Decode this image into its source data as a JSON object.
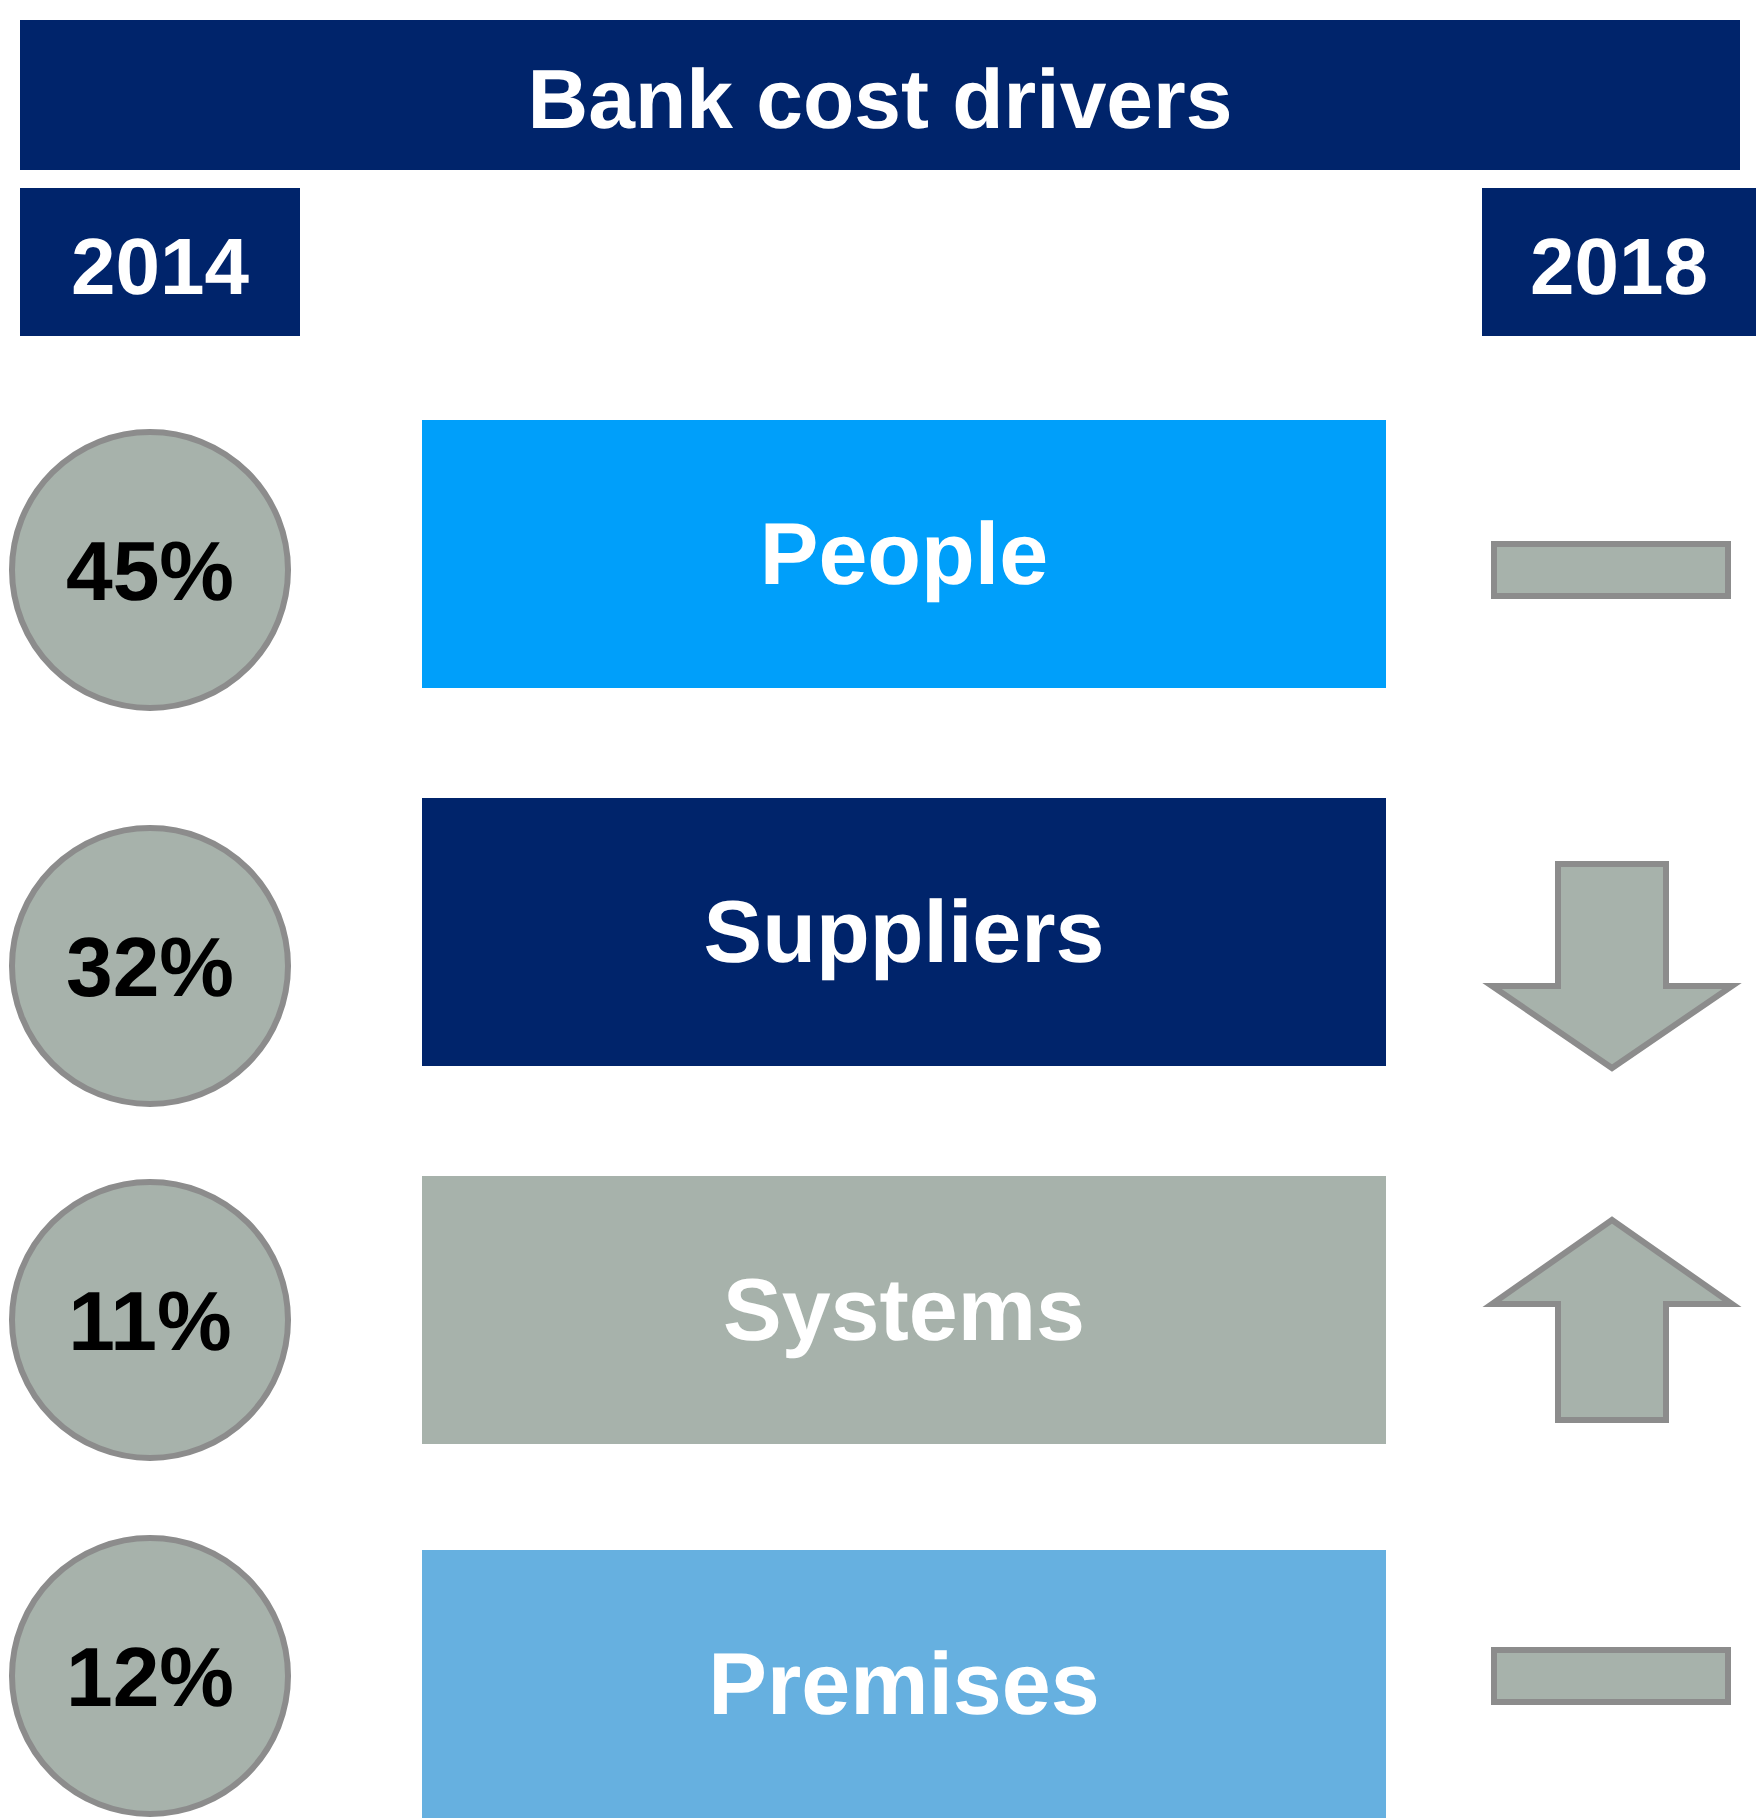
{
  "chart_data": {
    "type": "other",
    "title": "Bank cost drivers",
    "categories": [
      "People",
      "Suppliers",
      "Systems",
      "Premises"
    ],
    "values": [
      45,
      32,
      11,
      12
    ],
    "value_labels": [
      "45%",
      "32%",
      "11%",
      "12%"
    ],
    "annotations": [
      "2014",
      "2018"
    ]
  }
}
